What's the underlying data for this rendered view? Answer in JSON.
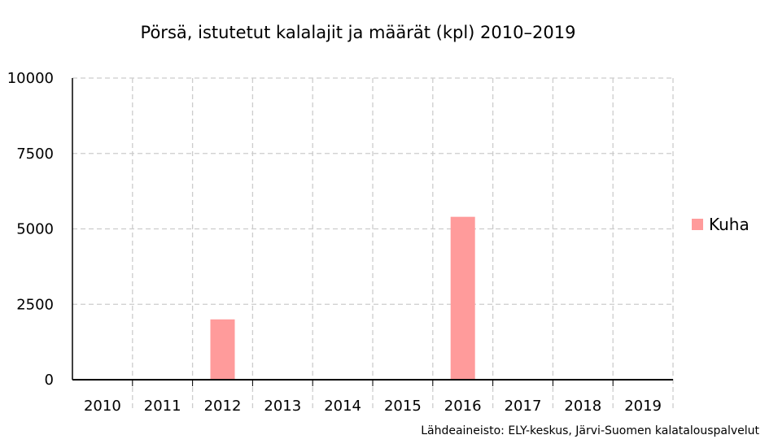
{
  "chart_data": {
    "type": "bar",
    "title": "Pörsä, istutetut kalalajit ja määrät (kpl) 2010–2019",
    "categories": [
      "2010",
      "2011",
      "2012",
      "2013",
      "2014",
      "2015",
      "2016",
      "2017",
      "2018",
      "2019"
    ],
    "series": [
      {
        "name": "Kuha",
        "color": "#ff9b9b",
        "values": [
          0,
          0,
          2000,
          0,
          0,
          0,
          5400,
          0,
          0,
          0
        ]
      }
    ],
    "ylim": [
      0,
      10000
    ],
    "yticks": [
      0,
      2500,
      5000,
      7500,
      10000
    ],
    "grid": true,
    "legend_position": "right"
  },
  "source_note": "Lähdeaineisto: ELY-keskus, Järvi-Suomen kalatalouspalvelut"
}
